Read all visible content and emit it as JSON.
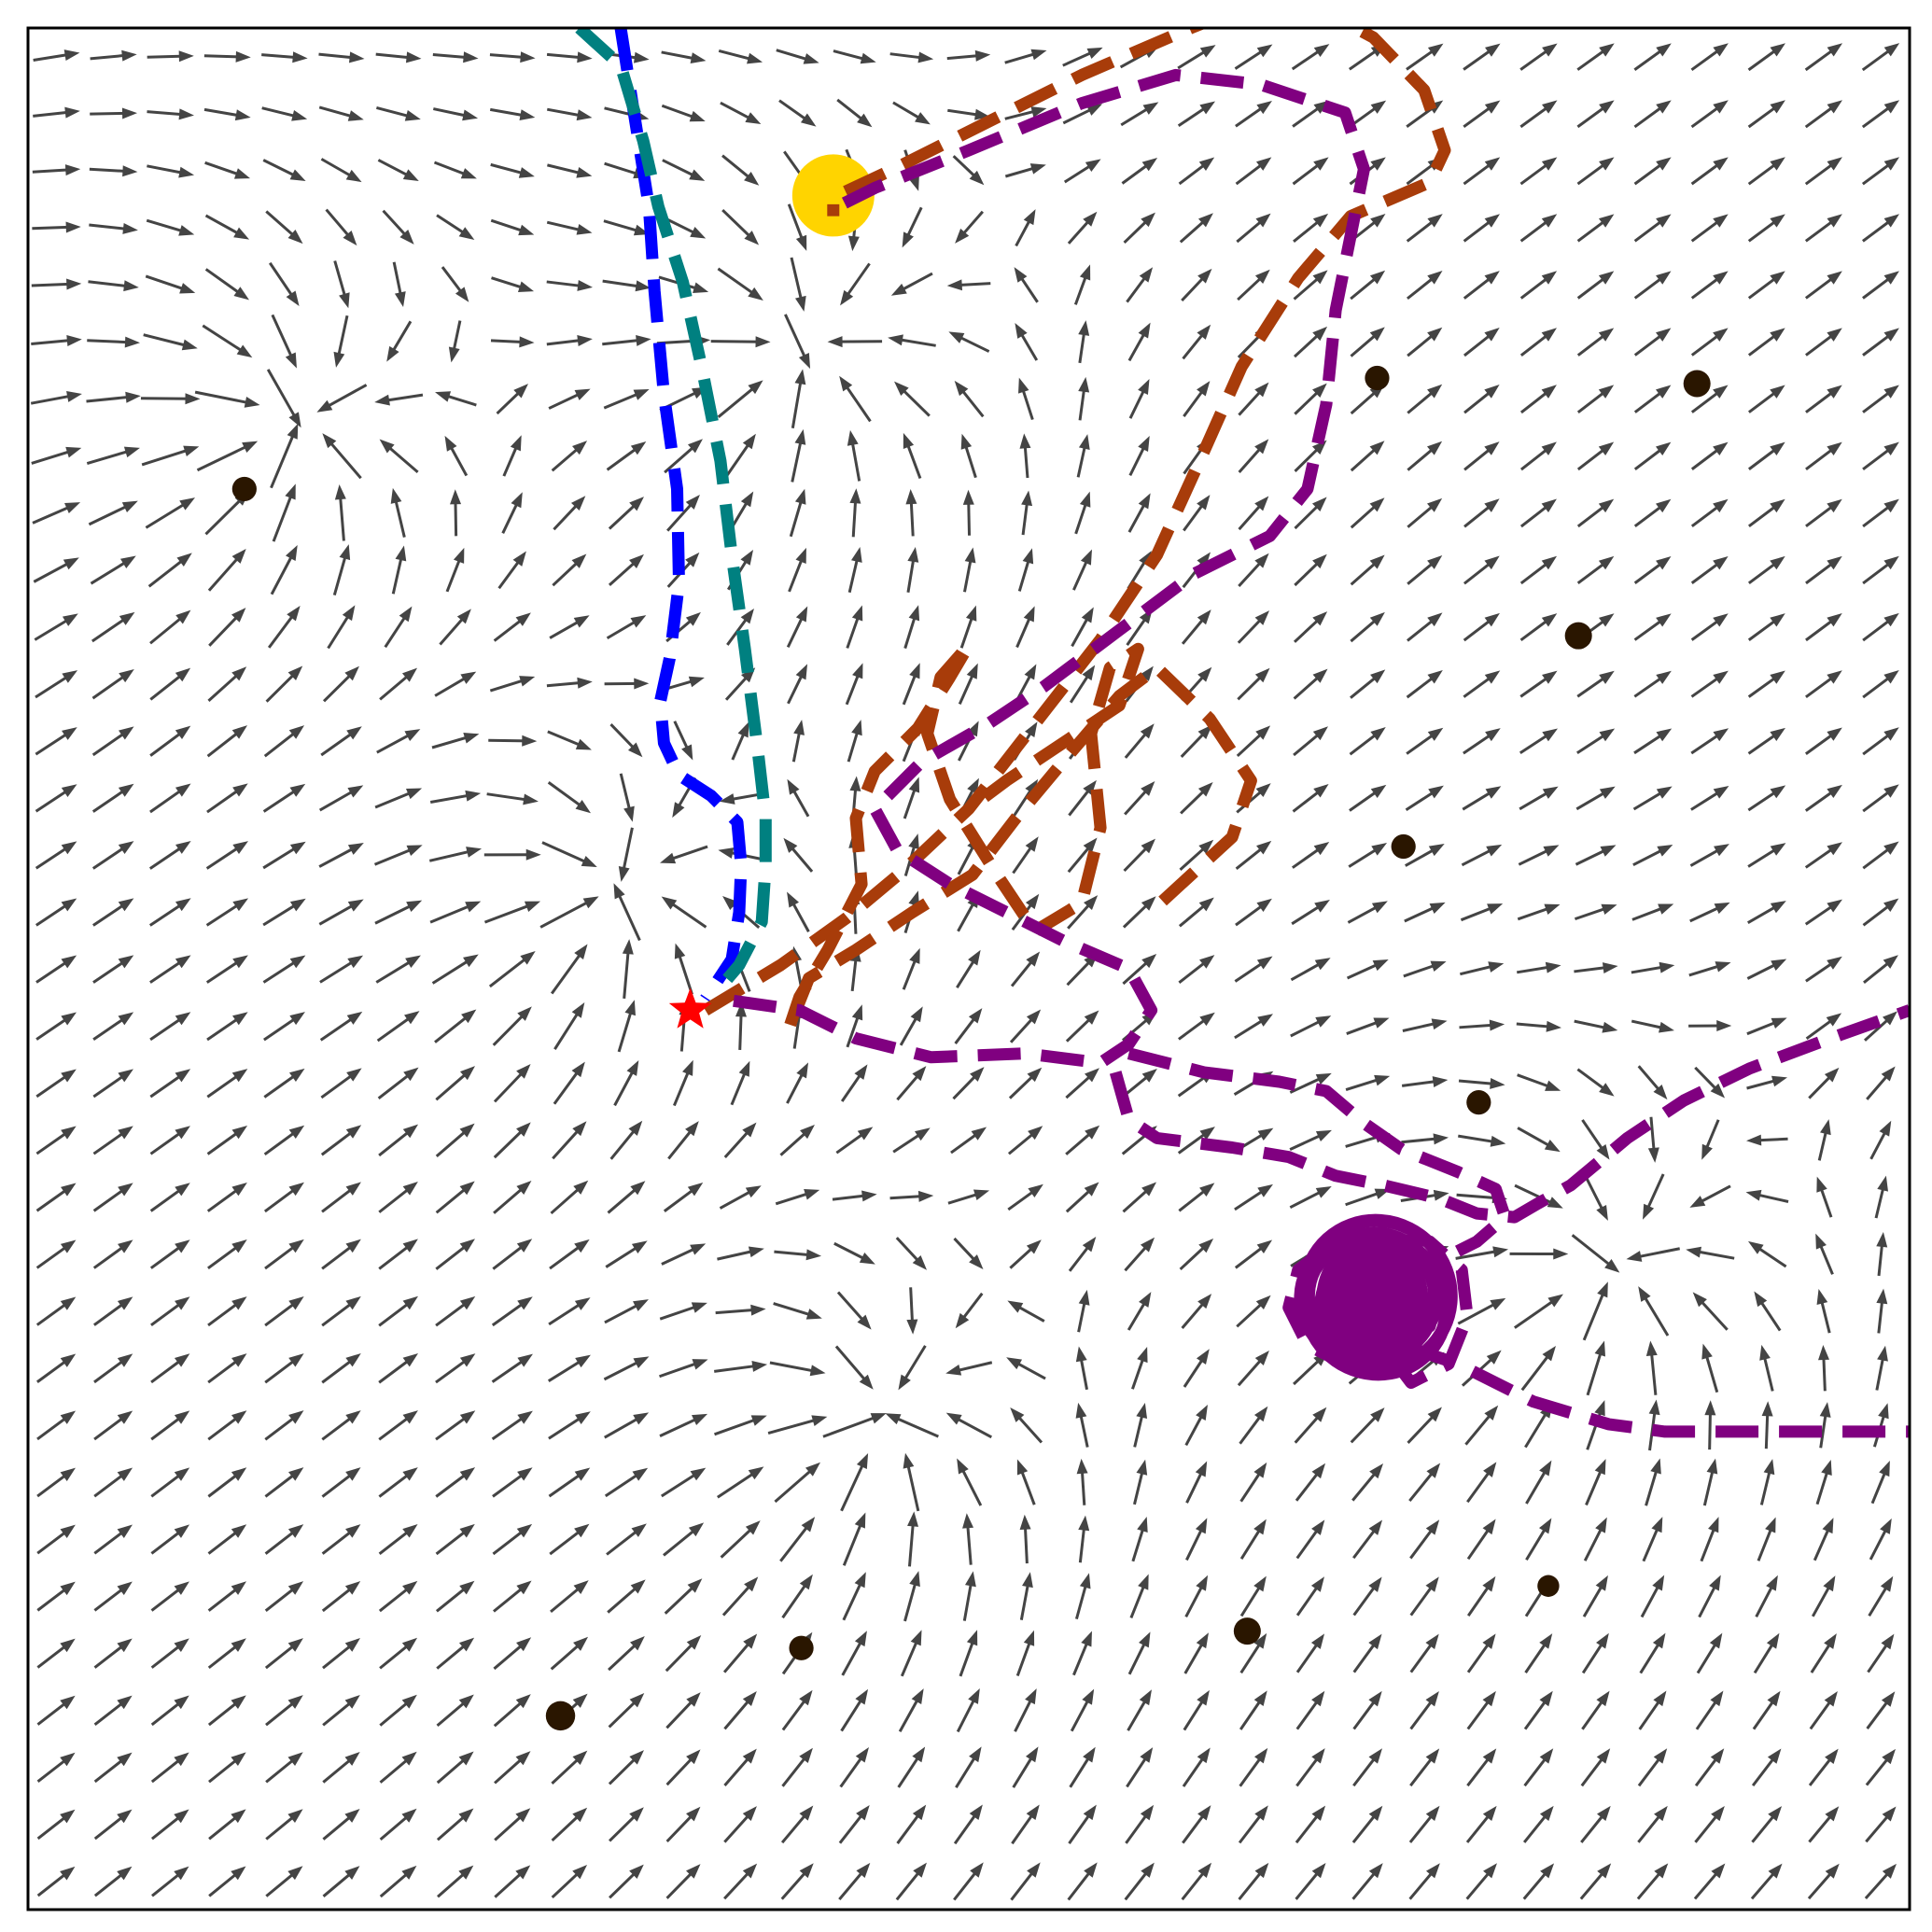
{
  "chart_data": {
    "type": "vector-field-trajectories",
    "title": "",
    "xlabel": "",
    "ylabel": "",
    "xlim": [
      0,
      1
    ],
    "ylim": [
      0,
      1
    ],
    "grid": false,
    "legend": "none",
    "colors": {
      "quiver": "#444444",
      "obstacle": "#2a1600",
      "goal": "#ffd400",
      "start": "#ff0000",
      "frame": "#000000"
    },
    "start": {
      "x": 0.352,
      "y": 0.478,
      "marker": "star"
    },
    "goal": {
      "x": 0.428,
      "y": 0.911
    },
    "obstacles": [
      {
        "x": 0.115,
        "y": 0.755,
        "r": 0.0065
      },
      {
        "x": 0.717,
        "y": 0.814,
        "r": 0.0065
      },
      {
        "x": 0.887,
        "y": 0.811,
        "r": 0.0072
      },
      {
        "x": 0.824,
        "y": 0.677,
        "r": 0.0072
      },
      {
        "x": 0.731,
        "y": 0.565,
        "r": 0.0065
      },
      {
        "x": 0.771,
        "y": 0.429,
        "r": 0.0065
      },
      {
        "x": 0.808,
        "y": 0.172,
        "r": 0.0058
      },
      {
        "x": 0.648,
        "y": 0.148,
        "r": 0.0072
      },
      {
        "x": 0.411,
        "y": 0.139,
        "r": 0.0065
      },
      {
        "x": 0.283,
        "y": 0.103,
        "r": 0.0078
      }
    ],
    "field_attractors": [
      {
        "x": 0.14,
        "y": 0.79,
        "k": 1.6
      },
      {
        "x": 0.41,
        "y": 0.83,
        "k": 1.2
      },
      {
        "x": 0.31,
        "y": 0.54,
        "k": 1.3
      },
      {
        "x": 0.45,
        "y": 0.26,
        "k": 1.3
      },
      {
        "x": 0.84,
        "y": 0.34,
        "k": 1.2
      }
    ],
    "series": [
      {
        "color": "#0000ff",
        "style": "dashed",
        "points": [
          [
            0.315,
            1.0
          ],
          [
            0.322,
            0.955
          ],
          [
            0.33,
            0.905
          ],
          [
            0.333,
            0.86
          ],
          [
            0.338,
            0.805
          ],
          [
            0.345,
            0.755
          ],
          [
            0.346,
            0.705
          ],
          [
            0.341,
            0.665
          ],
          [
            0.336,
            0.642
          ],
          [
            0.338,
            0.62
          ],
          [
            0.346,
            0.603
          ],
          [
            0.363,
            0.592
          ],
          [
            0.377,
            0.578
          ],
          [
            0.379,
            0.555
          ],
          [
            0.378,
            0.53
          ],
          [
            0.374,
            0.505
          ],
          [
            0.36,
            0.484
          ]
        ]
      },
      {
        "color": "#008080",
        "style": "dashed",
        "points": [
          [
            0.293,
            1.0
          ],
          [
            0.315,
            0.98
          ],
          [
            0.327,
            0.94
          ],
          [
            0.335,
            0.905
          ],
          [
            0.348,
            0.865
          ],
          [
            0.358,
            0.82
          ],
          [
            0.368,
            0.77
          ],
          [
            0.374,
            0.72
          ],
          [
            0.381,
            0.67
          ],
          [
            0.388,
            0.615
          ],
          [
            0.392,
            0.58
          ],
          [
            0.392,
            0.555
          ],
          [
            0.39,
            0.525
          ],
          [
            0.378,
            0.502
          ],
          [
            0.366,
            0.488
          ]
        ]
      },
      {
        "color": "#a83c0a",
        "style": "dashed",
        "points": [
          [
            0.36,
            0.478
          ],
          [
            0.4,
            0.502
          ],
          [
            0.435,
            0.527
          ],
          [
            0.465,
            0.552
          ],
          [
            0.5,
            0.585
          ],
          [
            0.535,
            0.63
          ],
          [
            0.57,
            0.675
          ],
          [
            0.6,
            0.72
          ],
          [
            0.625,
            0.775
          ],
          [
            0.645,
            0.82
          ],
          [
            0.675,
            0.867
          ],
          [
            0.703,
            0.9
          ],
          [
            0.745,
            0.918
          ],
          [
            0.753,
            0.935
          ],
          [
            0.742,
            0.967
          ],
          [
            0.715,
            0.995
          ],
          [
            0.668,
            1.02
          ],
          [
            0.618,
            1.0
          ],
          [
            0.56,
            0.975
          ],
          [
            0.5,
            0.945
          ],
          [
            0.46,
            0.925
          ],
          [
            0.428,
            0.91
          ],
          [
            0.428,
            0.9
          ]
        ]
      },
      {
        "color": "#a83c0a",
        "style": "dashed",
        "points": [
          [
            0.603,
            0.536
          ],
          [
            0.64,
            0.57
          ],
          [
            0.65,
            0.6
          ],
          [
            0.628,
            0.633
          ],
          [
            0.6,
            0.66
          ],
          [
            0.58,
            0.645
          ],
          [
            0.55,
            0.61
          ],
          [
            0.525,
            0.58
          ],
          [
            0.502,
            0.55
          ],
          [
            0.47,
            0.53
          ],
          [
            0.44,
            0.51
          ],
          [
            0.415,
            0.495
          ],
          [
            0.405,
            0.47
          ],
          [
            0.41,
            0.485
          ],
          [
            0.425,
            0.51
          ],
          [
            0.443,
            0.545
          ],
          [
            0.44,
            0.58
          ],
          [
            0.45,
            0.605
          ],
          [
            0.473,
            0.628
          ],
          [
            0.49,
            0.655
          ],
          [
            0.5,
            0.672
          ],
          [
            0.485,
            0.655
          ],
          [
            0.478,
            0.625
          ],
          [
            0.49,
            0.59
          ],
          [
            0.515,
            0.55
          ],
          [
            0.535,
            0.52
          ],
          [
            0.56,
            0.535
          ],
          [
            0.57,
            0.575
          ],
          [
            0.565,
            0.625
          ],
          [
            0.575,
            0.66
          ],
          [
            0.59,
            0.67
          ],
          [
            0.58,
            0.64
          ],
          [
            0.55,
            0.62
          ],
          [
            0.52,
            0.6
          ],
          [
            0.5,
            0.585
          ]
        ]
      },
      {
        "color": "#800080",
        "style": "dashed",
        "points": [
          [
            0.375,
            0.483
          ],
          [
            0.41,
            0.478
          ],
          [
            0.44,
            0.463
          ],
          [
            0.48,
            0.453
          ],
          [
            0.53,
            0.455
          ],
          [
            0.57,
            0.45
          ],
          [
            0.585,
            0.46
          ],
          [
            0.597,
            0.478
          ],
          [
            0.585,
            0.5
          ],
          [
            0.55,
            0.515
          ],
          [
            0.52,
            0.53
          ],
          [
            0.49,
            0.545
          ],
          [
            0.462,
            0.563
          ],
          [
            0.45,
            0.585
          ],
          [
            0.475,
            0.61
          ],
          [
            0.51,
            0.63
          ],
          [
            0.54,
            0.65
          ],
          [
            0.58,
            0.68
          ],
          [
            0.62,
            0.71
          ],
          [
            0.66,
            0.73
          ],
          [
            0.68,
            0.755
          ],
          [
            0.69,
            0.8
          ],
          [
            0.695,
            0.85
          ],
          [
            0.705,
            0.9
          ],
          [
            0.71,
            0.925
          ],
          [
            0.7,
            0.955
          ],
          [
            0.655,
            0.97
          ],
          [
            0.61,
            0.975
          ],
          [
            0.56,
            0.96
          ],
          [
            0.5,
            0.935
          ],
          [
            0.45,
            0.915
          ],
          [
            0.43,
            0.905
          ]
        ]
      },
      {
        "color": "#800080",
        "style": "dashed",
        "points": [
          [
            0.578,
            0.445
          ],
          [
            0.585,
            0.42
          ],
          [
            0.6,
            0.41
          ],
          [
            0.64,
            0.405
          ],
          [
            0.67,
            0.4
          ],
          [
            0.695,
            0.39
          ],
          [
            0.72,
            0.385
          ],
          [
            0.75,
            0.378
          ],
          [
            0.77,
            0.37
          ],
          [
            0.79,
            0.368
          ],
          [
            0.802,
            0.375
          ],
          [
            0.82,
            0.385
          ],
          [
            0.85,
            0.41
          ],
          [
            0.88,
            0.43
          ],
          [
            0.915,
            0.447
          ],
          [
            0.955,
            0.462
          ],
          [
            1.0,
            0.478
          ]
        ]
      },
      {
        "color": "#800080",
        "style": "dashed",
        "points": [
          [
            0.585,
            0.455
          ],
          [
            0.625,
            0.445
          ],
          [
            0.665,
            0.44
          ],
          [
            0.69,
            0.435
          ],
          [
            0.71,
            0.418
          ],
          [
            0.73,
            0.404
          ],
          [
            0.76,
            0.392
          ],
          [
            0.78,
            0.383
          ],
          [
            0.785,
            0.368
          ],
          [
            0.77,
            0.355
          ],
          [
            0.75,
            0.345
          ],
          [
            0.73,
            0.33
          ],
          [
            0.72,
            0.3
          ],
          [
            0.735,
            0.28
          ],
          [
            0.755,
            0.29
          ],
          [
            0.765,
            0.315
          ],
          [
            0.762,
            0.34
          ],
          [
            0.745,
            0.355
          ],
          [
            0.72,
            0.36
          ],
          [
            0.695,
            0.355
          ],
          [
            0.675,
            0.34
          ],
          [
            0.67,
            0.32
          ],
          [
            0.68,
            0.3
          ],
          [
            0.7,
            0.29
          ],
          [
            0.725,
            0.293
          ],
          [
            0.745,
            0.31
          ],
          [
            0.75,
            0.33
          ],
          [
            0.738,
            0.345
          ],
          [
            0.72,
            0.35
          ],
          [
            0.7,
            0.345
          ],
          [
            0.688,
            0.33
          ],
          [
            0.69,
            0.31
          ],
          [
            0.705,
            0.3
          ],
          [
            0.73,
            0.3
          ],
          [
            0.76,
            0.29
          ],
          [
            0.8,
            0.27
          ],
          [
            0.84,
            0.258
          ],
          [
            0.87,
            0.254
          ],
          [
            0.91,
            0.254
          ],
          [
            0.95,
            0.254
          ],
          [
            1.0,
            0.254
          ]
        ]
      }
    ]
  }
}
